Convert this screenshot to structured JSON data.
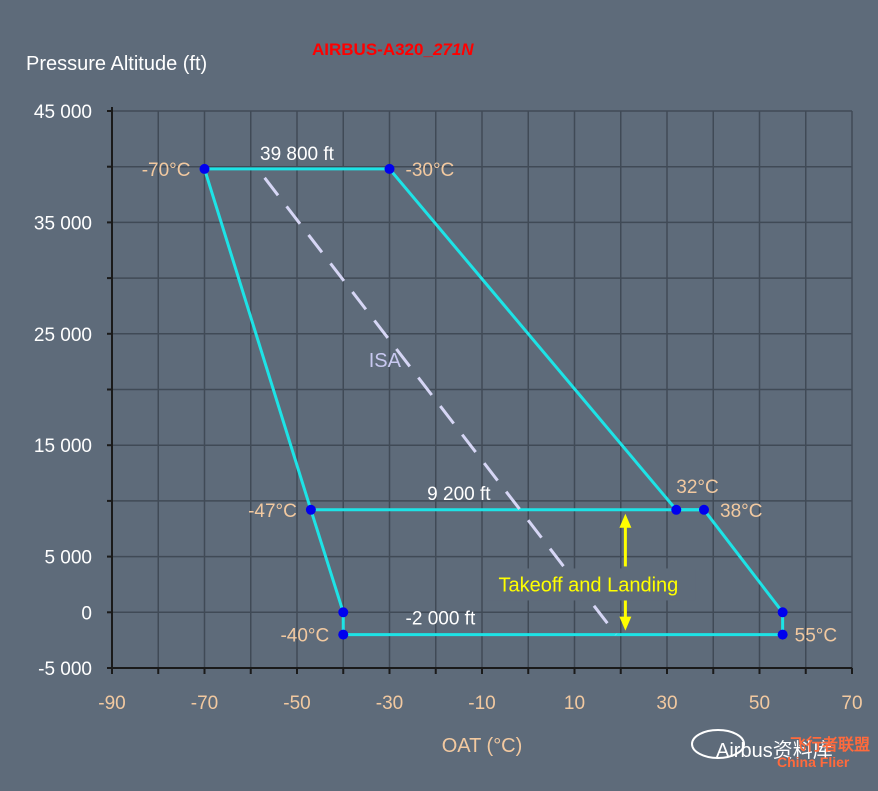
{
  "watermark": {
    "prefix": "AIRBUS-A320_",
    "emph": "271N"
  },
  "bottom_watermark": {
    "text": "Airbus资料库",
    "brand": "飞行者联盟",
    "brand_en": "China Flier"
  },
  "colors": {
    "background": "#5e6b7a",
    "grid": "#404a56",
    "envelope": "#1de3e6",
    "point": "#0000ee",
    "isa": "#d6d6f5",
    "arrow": "#ffff00"
  },
  "chart_data": {
    "type": "line",
    "ylabel": "Pressure Altitude (ft)",
    "xlabel": "OAT (°C)",
    "xlim": [
      -90,
      70
    ],
    "ylim": [
      -5000,
      45000
    ],
    "x_ticks": [
      -90,
      -70,
      -50,
      -30,
      -10,
      10,
      30,
      50,
      70
    ],
    "y_ticks": [
      {
        "value": 45000,
        "label": "45 000"
      },
      {
        "value": 35000,
        "label": "35 000"
      },
      {
        "value": 25000,
        "label": "25 000"
      },
      {
        "value": 15000,
        "label": "15 000"
      },
      {
        "value": 5000,
        "label": "5 000"
      },
      {
        "value": 0,
        "label": "0"
      },
      {
        "value": -5000,
        "label": "-5 000"
      }
    ],
    "grid": true,
    "envelope": [
      {
        "x": -70,
        "y": 39800
      },
      {
        "x": -30,
        "y": 39800
      },
      {
        "x": 32,
        "y": 9200
      },
      {
        "x": 38,
        "y": 9200
      },
      {
        "x": 55,
        "y": 0
      },
      {
        "x": 55,
        "y": -2000
      },
      {
        "x": -40,
        "y": -2000
      },
      {
        "x": -40,
        "y": 0
      },
      {
        "x": -47,
        "y": 9200
      }
    ],
    "takeoff_landing_line": [
      {
        "x": -47,
        "y": 9200
      },
      {
        "x": 38,
        "y": 9200
      }
    ],
    "isa_line": [
      {
        "x": -57,
        "y": 39000
      },
      {
        "x": 19,
        "y": -2000
      }
    ],
    "isa_label": "ISA",
    "point_labels": [
      {
        "text": "-70°C",
        "x": -70,
        "y": 39800
      },
      {
        "text": "-30°C",
        "x": -30,
        "y": 39800
      },
      {
        "text": "32°C",
        "x": 32,
        "y": 9200
      },
      {
        "text": "38°C",
        "x": 38,
        "y": 9200
      },
      {
        "text": "-47°C",
        "x": -47,
        "y": 9200
      },
      {
        "text": "-40°C",
        "x": -40,
        "y": -2000
      },
      {
        "text": "55°C",
        "x": 55,
        "y": -2000
      }
    ],
    "altitude_labels": [
      {
        "text": "39 800 ft",
        "x": -50,
        "y": 39800
      },
      {
        "text": "9 200 ft",
        "x": -15,
        "y": 9200
      },
      {
        "text": "-2 000 ft",
        "x": -19,
        "y": -2000
      }
    ],
    "annotation": {
      "text": "Takeoff and Landing",
      "x": 21,
      "y_from": 9200,
      "y_to": -2000
    }
  }
}
